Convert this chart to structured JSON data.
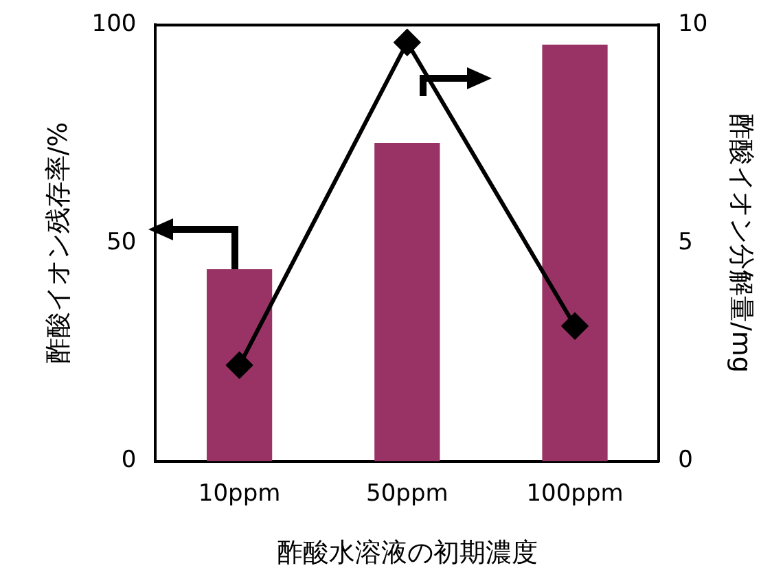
{
  "chart_data": {
    "type": "bar",
    "xlabel": "酢酸水溶液の初期濃度",
    "ylabel": "酢酸イオン残存率/%",
    "y2label": "酢酸イオン分解量/mg",
    "categories": [
      "10ppm",
      "50ppm",
      "100ppm"
    ],
    "series": [
      {
        "color": "#993366",
        "values": [
          44,
          73,
          95.5
        ]
      },
      {
        "type": "line",
        "axis": "y2",
        "color": "#000000",
        "values": [
          2.2,
          9.6,
          3.1
        ],
        "marker": "diamond",
        "line_style": "solid"
      }
    ],
    "ylim": [
      0,
      100
    ],
    "yticks": [
      0,
      50,
      100
    ],
    "y2lim": [
      0,
      10
    ],
    "y2ticks": [
      0,
      5,
      10
    ],
    "grid": false,
    "legend": false
  }
}
